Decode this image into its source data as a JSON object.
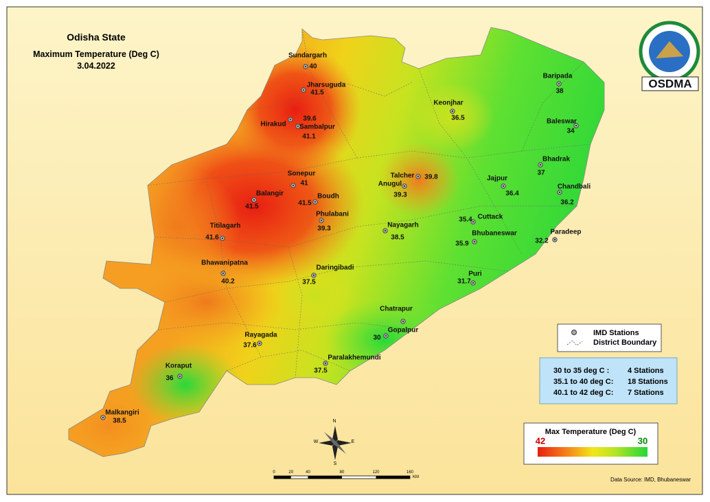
{
  "header": {
    "title": "Odisha State",
    "subtitle": "Maximum Temperature (Deg C)",
    "date": "3.04.2022"
  },
  "logo": {
    "label": "OSDMA"
  },
  "stations": [
    {
      "name": "Sundargarh",
      "value": 40
    },
    {
      "name": "Jharsuguda",
      "value": 41.5
    },
    {
      "name": "Hirakud",
      "value": 39.6
    },
    {
      "name": "Sambalpur",
      "value": 41.1
    },
    {
      "name": "Sonepur",
      "value": 41
    },
    {
      "name": "Balangir",
      "value": 41.5
    },
    {
      "name": "Boudh",
      "value": 41.5
    },
    {
      "name": "Phulabani",
      "value": 39.3
    },
    {
      "name": "Titilagarh",
      "value": 41.6
    },
    {
      "name": "Talcher",
      "value": 39.8
    },
    {
      "name": "Anugul",
      "value": 39.3
    },
    {
      "name": "Keonjhar",
      "value": 36.5
    },
    {
      "name": "Baripada",
      "value": 38
    },
    {
      "name": "Baleswar",
      "value": 34
    },
    {
      "name": "Bhadrak",
      "value": 37
    },
    {
      "name": "Jajpur",
      "value": 36.4
    },
    {
      "name": "Chandbali",
      "value": 36.2
    },
    {
      "name": "Nayagarh",
      "value": 38.5
    },
    {
      "name": "Cuttack",
      "value": 35.4
    },
    {
      "name": "Bhubaneswar",
      "value": 35.9
    },
    {
      "name": "Paradeep",
      "value": 32.2
    },
    {
      "name": "Puri",
      "value": 31.7
    },
    {
      "name": "Daringibadi",
      "value": 37.5
    },
    {
      "name": "Bhawanipatna",
      "value": 40.2
    },
    {
      "name": "Rayagada",
      "value": 37.6
    },
    {
      "name": "Chatrapur"
    },
    {
      "name": "Gopalpur",
      "value": 30
    },
    {
      "name": "Paralakhemundi",
      "value": 37.5
    },
    {
      "name": "Koraput",
      "value": 36
    },
    {
      "name": "Malkangiri",
      "value": 38.5
    }
  ],
  "legend": {
    "stations": "IMD Stations",
    "boundary": "District Boundary"
  },
  "summary": [
    {
      "range": "30  to 35 deg C  :",
      "count": "4 Stations"
    },
    {
      "range": "35.1 to 40 deg C:",
      "count": "18 Stations"
    },
    {
      "range": "40.1 to 42 deg C:",
      "count": "7 Stations"
    }
  ],
  "color_scale": {
    "title": "Max Temperature (Deg C)",
    "max": 42,
    "min": 30
  },
  "scale_bar": {
    "ticks": [
      0,
      20,
      40,
      80,
      120,
      160
    ],
    "unit": "KM"
  },
  "compass": {
    "n": "N",
    "e": "E",
    "s": "S",
    "w": "W"
  },
  "source": "Data Source: IMD, Bhubaneswar"
}
